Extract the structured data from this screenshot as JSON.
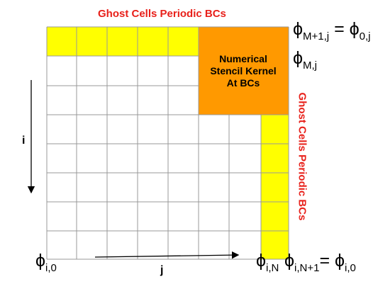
{
  "title_top": "Ghost Cells Periodic BCs",
  "title_right": "Ghost Cells Periodic BCs",
  "stencil_label": [
    "Numerical",
    "Stencil Kernel",
    "At BCs"
  ],
  "axis_i": "i",
  "axis_j": "j",
  "labels": {
    "top_right": {
      "phi": "ϕ",
      "sub": "M+1,j",
      "eq": " = ",
      "phi2": "ϕ",
      "sub2": "0,j"
    },
    "mj": {
      "phi": "ϕ",
      "sub": "M,j"
    },
    "bottom_left": {
      "phi": "ϕ",
      "sub": "i,0"
    },
    "bottom_iN": {
      "phi": "ϕ",
      "sub": "i,N"
    },
    "bottom_right": {
      "phi": "ϕ",
      "sub": "i,N+1",
      "eq": "= ",
      "phi2": "ϕ",
      "sub2": "i,0"
    }
  },
  "colors": {
    "ghost": "#ffff00",
    "stencil": "#ff9900",
    "title": "#e8201a",
    "grid": "#999999"
  }
}
